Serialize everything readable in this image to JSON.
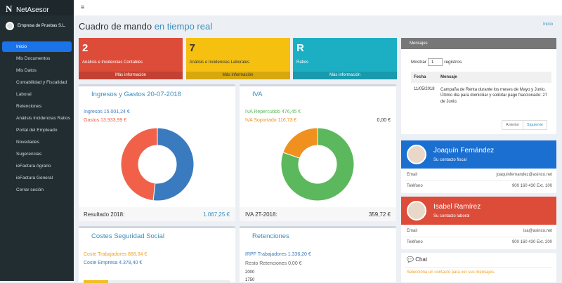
{
  "header": {
    "brand": "NetAsesor",
    "breadcrumb": "Inicio"
  },
  "sidebar": {
    "company": "Empresa de Pruebas S.L.",
    "menu": [
      "Inicio",
      "Mis Documentos",
      "Mis Datos",
      "Contabilidad y Fiscalidad",
      "Laboral",
      "Retenciones",
      "Análisis Incidencias Ratios",
      "Portal del Empleado",
      "Novedades",
      "Sugerencias",
      "ieFactura Agrario",
      "ieFactura General",
      "Cerrar sesión"
    ]
  },
  "page": {
    "title": "Cuadro de mando",
    "title_highlight": "en tiempo real"
  },
  "stat_boxes": [
    {
      "number": "2",
      "label": "Análisis e Incidencias Contables",
      "link": "Más información"
    },
    {
      "number": "7",
      "label": "Análisis e Incidencias Laborales",
      "link": "Más información"
    },
    {
      "number": "R",
      "label": "Ratios",
      "link": "Más información"
    }
  ],
  "ingresos_gastos": {
    "title": "Ingresos y Gastos 20-07-2018",
    "legend": [
      "Ingresos 15.001,24 €",
      "Gastos 13.933,99 €"
    ],
    "values": [
      15001.24,
      13933.99
    ],
    "colors": [
      "#3a7bbf",
      "#f1614a"
    ],
    "footer_label": "Resultado 2018:",
    "footer_value": "1.067,25 €"
  },
  "iva": {
    "title": "IVA",
    "legend": [
      "IVA Repercutido 476,45 €",
      "IVA Soportado 116,73 €"
    ],
    "extra": "0,00 €",
    "values": [
      476.45,
      116.73
    ],
    "colors": [
      "#5cb85c",
      "#f0901e"
    ],
    "footer_label": "IVA 2T-2018:",
    "footer_value": "359,72 €"
  },
  "seguridad_social": {
    "title": "Costes Seguridad Social",
    "lines": [
      "Coste Trabajadores 868,04 €",
      "Coste Empresa 4.378,40 €"
    ]
  },
  "retenciones": {
    "title": "Retenciones",
    "lines": [
      "IRPF Trabajadores 1.336,20 €",
      "Resto Retenciones 0,00 €"
    ],
    "ticks": [
      "2000",
      "1750"
    ]
  },
  "mensajes": {
    "title": "Mensajes",
    "show_prefix": "Mostrar",
    "show_value": "1",
    "show_suffix": "registros",
    "columns": [
      "Fecha",
      "Mensaje"
    ],
    "rows": [
      [
        "11/05/2018",
        "Campaña de Renta durante los meses de Mayo y Junio. Último día para domiciliar y solicitar pago fraccionado: 27 de Junio."
      ]
    ],
    "prev": "Anterior",
    "next": "Siguiente"
  },
  "contacts": [
    {
      "name": "Joaquín Fernández",
      "role": "Su contacto fiscal",
      "email_label": "Email",
      "email": "joaquinfernandez@asinco.net",
      "phone_label": "Teléfono",
      "phone": "900 160 430 Ext. 100"
    },
    {
      "name": "Isabel Ramírez",
      "role": "Su contacto laboral",
      "email_label": "Email",
      "email": "isa@asinco.net",
      "phone_label": "Teléfono",
      "phone": "900 160 430 Ext. 200"
    }
  ],
  "chat": {
    "title": "Chat",
    "hint": "Selecciona un contacto para ver sus mensajes."
  }
}
